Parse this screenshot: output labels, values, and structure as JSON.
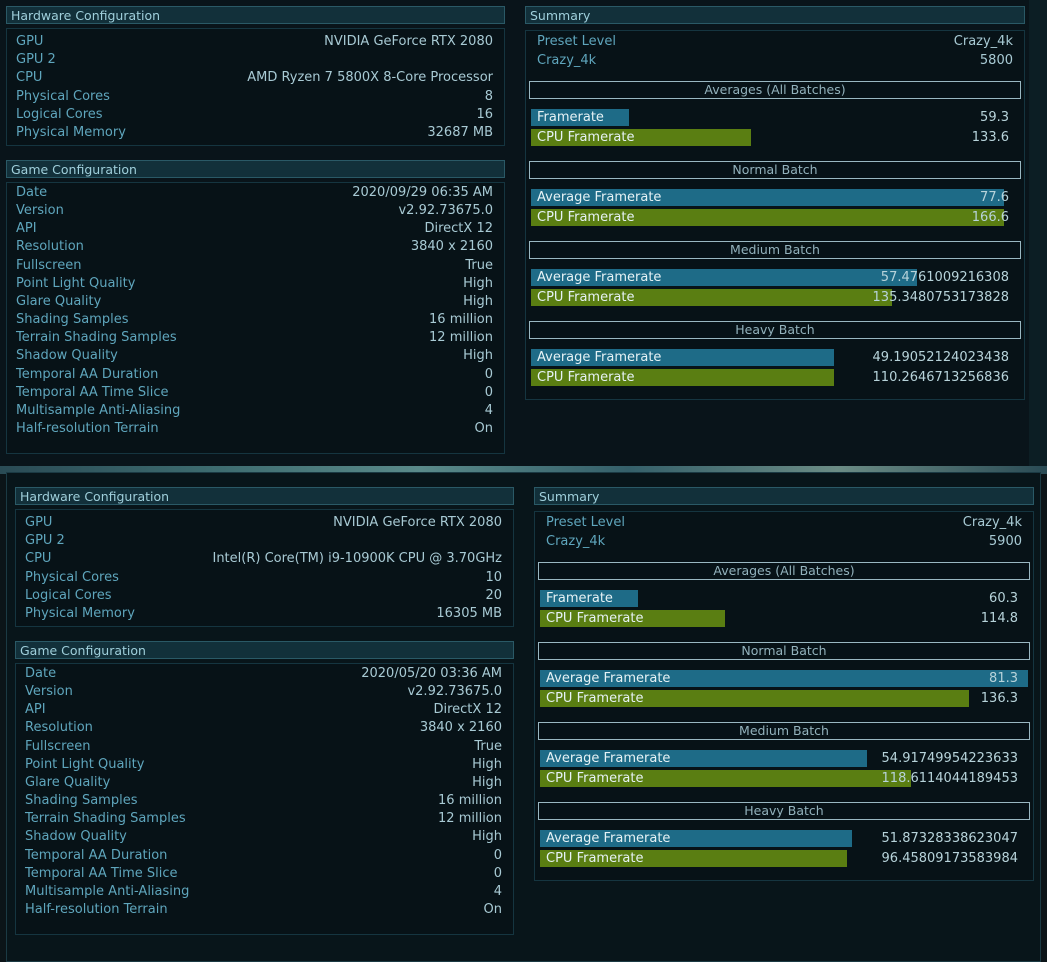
{
  "top": {
    "hw_title": "Hardware Configuration",
    "hw": [
      {
        "k": "GPU",
        "v": "NVIDIA GeForce RTX 2080"
      },
      {
        "k": "GPU 2",
        "v": ""
      },
      {
        "k": "CPU",
        "v": "AMD Ryzen 7 5800X 8-Core Processor"
      },
      {
        "k": "Physical Cores",
        "v": "8"
      },
      {
        "k": "Logical Cores",
        "v": "16"
      },
      {
        "k": "Physical Memory",
        "v": "32687 MB"
      }
    ],
    "game_title": "Game Configuration",
    "game": [
      {
        "k": "Date",
        "v": "2020/09/29 06:35 AM"
      },
      {
        "k": "Version",
        "v": "v2.92.73675.0"
      },
      {
        "k": "API",
        "v": "DirectX 12"
      },
      {
        "k": "Resolution",
        "v": "3840 x 2160"
      },
      {
        "k": "Fullscreen",
        "v": "True"
      },
      {
        "k": "Point Light Quality",
        "v": "High"
      },
      {
        "k": "Glare Quality",
        "v": "High"
      },
      {
        "k": "Shading Samples",
        "v": "16 million"
      },
      {
        "k": "Terrain Shading Samples",
        "v": "12 million"
      },
      {
        "k": "Shadow Quality",
        "v": "High"
      },
      {
        "k": "Temporal AA Duration",
        "v": "0"
      },
      {
        "k": "Temporal AA Time Slice",
        "v": "0"
      },
      {
        "k": "Multisample Anti-Aliasing",
        "v": "4"
      },
      {
        "k": "Half-resolution Terrain",
        "v": "On"
      }
    ],
    "summary_title": "Summary",
    "preset": [
      {
        "k": "Preset Level",
        "v": "Crazy_4k"
      },
      {
        "k": "Crazy_4k",
        "v": "5800"
      }
    ],
    "averages_title": "Averages (All Batches)",
    "averages": [
      {
        "label": "Framerate",
        "value": "59.3",
        "fill": 0.2,
        "color": "blue"
      },
      {
        "label": "CPU Framerate",
        "value": "133.6",
        "fill": 0.45,
        "color": "green"
      }
    ],
    "normal_title": "Normal Batch",
    "normal": [
      {
        "label": "Average Framerate",
        "value": "77.6",
        "fill": 0.97,
        "color": "blue"
      },
      {
        "label": "CPU Framerate",
        "value": "166.6",
        "fill": 0.97,
        "color": "green"
      }
    ],
    "medium_title": "Medium Batch",
    "medium": [
      {
        "label": "Average Framerate",
        "value": "57.4761009216308",
        "fill": 0.79,
        "color": "blue"
      },
      {
        "label": "CPU Framerate",
        "value": "135.3480753173828",
        "fill": 0.74,
        "color": "green"
      }
    ],
    "heavy_title": "Heavy Batch",
    "heavy": [
      {
        "label": "Average Framerate",
        "value": "49.19052124023438",
        "fill": 0.62,
        "color": "blue"
      },
      {
        "label": "CPU Framerate",
        "value": "110.2646713256836",
        "fill": 0.62,
        "color": "green"
      }
    ]
  },
  "bottom": {
    "hw_title": "Hardware Configuration",
    "hw": [
      {
        "k": "GPU",
        "v": "NVIDIA GeForce RTX 2080"
      },
      {
        "k": "GPU 2",
        "v": ""
      },
      {
        "k": "CPU",
        "v": "Intel(R) Core(TM) i9-10900K CPU @ 3.70GHz"
      },
      {
        "k": "Physical Cores",
        "v": "10"
      },
      {
        "k": "Logical Cores",
        "v": "20"
      },
      {
        "k": "Physical Memory",
        "v": "16305 MB"
      }
    ],
    "game_title": "Game Configuration",
    "game": [
      {
        "k": "Date",
        "v": "2020/05/20 03:36 AM"
      },
      {
        "k": "Version",
        "v": "v2.92.73675.0"
      },
      {
        "k": "API",
        "v": "DirectX 12"
      },
      {
        "k": "Resolution",
        "v": "3840 x 2160"
      },
      {
        "k": "Fullscreen",
        "v": "True"
      },
      {
        "k": "Point Light Quality",
        "v": "High"
      },
      {
        "k": "Glare Quality",
        "v": "High"
      },
      {
        "k": "Shading Samples",
        "v": "16 million"
      },
      {
        "k": "Terrain Shading Samples",
        "v": "12 million"
      },
      {
        "k": "Shadow Quality",
        "v": "High"
      },
      {
        "k": "Temporal AA Duration",
        "v": "0"
      },
      {
        "k": "Temporal AA Time Slice",
        "v": "0"
      },
      {
        "k": "Multisample Anti-Aliasing",
        "v": "4"
      },
      {
        "k": "Half-resolution Terrain",
        "v": "On"
      }
    ],
    "summary_title": "Summary",
    "preset": [
      {
        "k": "Preset Level",
        "v": "Crazy_4k"
      },
      {
        "k": "Crazy_4k",
        "v": "5900"
      }
    ],
    "averages_title": "Averages (All Batches)",
    "averages": [
      {
        "label": "Framerate",
        "value": "60.3",
        "fill": 0.2,
        "color": "blue"
      },
      {
        "label": "CPU Framerate",
        "value": "114.8",
        "fill": 0.38,
        "color": "green"
      }
    ],
    "normal_title": "Normal Batch",
    "normal": [
      {
        "label": "Average Framerate",
        "value": "81.3",
        "fill": 1.0,
        "color": "blue"
      },
      {
        "label": "CPU Framerate",
        "value": "136.3",
        "fill": 0.88,
        "color": "green"
      }
    ],
    "medium_title": "Medium Batch",
    "medium": [
      {
        "label": "Average Framerate",
        "value": "54.91749954223633",
        "fill": 0.67,
        "color": "blue"
      },
      {
        "label": "CPU Framerate",
        "value": "118.6114044189453",
        "fill": 0.76,
        "color": "green"
      }
    ],
    "heavy_title": "Heavy Batch",
    "heavy": [
      {
        "label": "Average Framerate",
        "value": "51.87328338623047",
        "fill": 0.64,
        "color": "blue"
      },
      {
        "label": "CPU Framerate",
        "value": "96.45809173583984",
        "fill": 0.63,
        "color": "green"
      }
    ]
  }
}
